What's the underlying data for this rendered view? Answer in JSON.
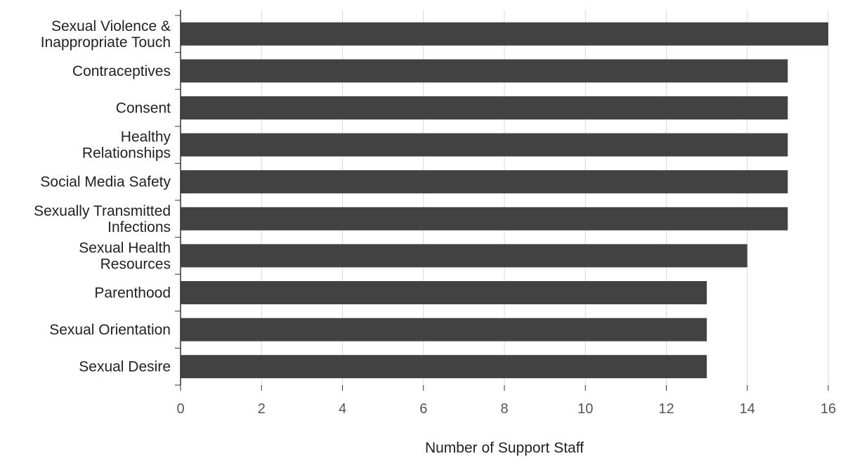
{
  "chart_data": {
    "type": "bar",
    "orientation": "horizontal",
    "title": "",
    "xlabel": "Number of Support Staff",
    "ylabel": "",
    "categories": [
      [
        "Sexual Violence &",
        "Inappropriate Touch"
      ],
      [
        "Contraceptives"
      ],
      [
        "Consent"
      ],
      [
        "Healthy",
        "Relationships"
      ],
      [
        "Social Media Safety"
      ],
      [
        "Sexually Transmitted",
        "Infections"
      ],
      [
        "Sexual Health",
        "Resources"
      ],
      [
        "Parenthood"
      ],
      [
        "Sexual Orientation"
      ],
      [
        "Sexual Desire"
      ]
    ],
    "values": [
      16,
      15,
      15,
      15,
      15,
      15,
      14,
      13,
      13,
      13
    ],
    "xlim": [
      0,
      16
    ],
    "xticks": [
      "0",
      "2",
      "4",
      "6",
      "8",
      "10",
      "12",
      "14",
      "16"
    ],
    "grid": true,
    "bar_color": "#424242",
    "grid_color": "#d9d9d9",
    "axis_color": "#333333"
  }
}
